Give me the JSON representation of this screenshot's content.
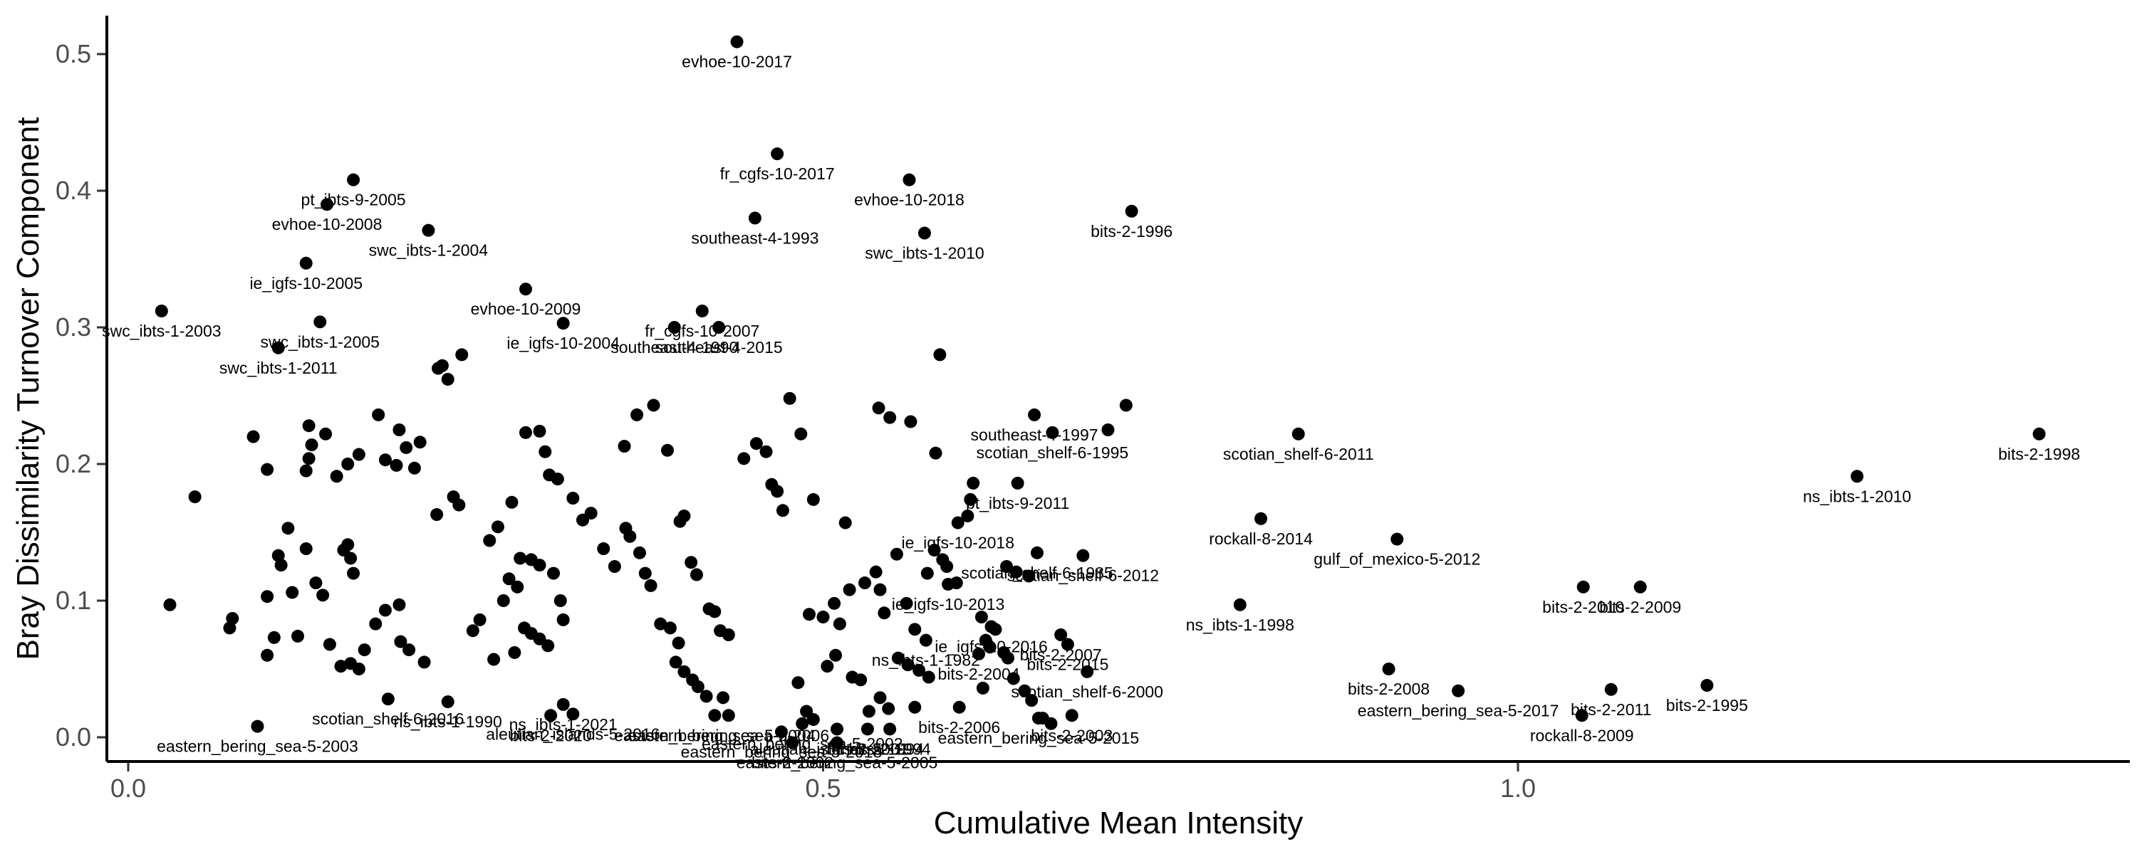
{
  "chart_data": {
    "type": "scatter",
    "title": "",
    "xlabel": "Cumulative Mean Intensity",
    "ylabel": "Bray Dissimilarity Turnover Component",
    "xlim": [
      -0.02,
      1.44
    ],
    "ylim": [
      -0.02,
      0.535
    ],
    "xticks": [
      0.0,
      0.5,
      1.0
    ],
    "yticks": [
      0.0,
      0.1,
      0.2,
      0.3,
      0.4,
      0.5
    ],
    "xtick_labels": [
      "0.0",
      "0.5",
      "1.0"
    ],
    "ytick_labels": [
      "0.0",
      "0.1",
      "0.2",
      "0.3",
      "0.4",
      "0.5"
    ],
    "grid": false,
    "legend": "none",
    "point_color": "#000000",
    "labeled_points": [
      {
        "x": 0.438,
        "y": 0.509,
        "label": "evhoe-10-2017"
      },
      {
        "x": 0.467,
        "y": 0.427,
        "label": "fr_cgfs-10-2017"
      },
      {
        "x": 0.562,
        "y": 0.408,
        "label": "evhoe-10-2018"
      },
      {
        "x": 0.451,
        "y": 0.38,
        "label": "southeast-4-1993"
      },
      {
        "x": 0.573,
        "y": 0.369,
        "label": "swc_ibts-1-2010"
      },
      {
        "x": 0.722,
        "y": 0.385,
        "label": "bits-2-1996"
      },
      {
        "x": 0.162,
        "y": 0.408,
        "label": "pt_ibts-9-2005"
      },
      {
        "x": 0.143,
        "y": 0.39,
        "label": "evhoe-10-2008"
      },
      {
        "x": 0.216,
        "y": 0.371,
        "label": "swc_ibts-1-2004"
      },
      {
        "x": 0.128,
        "y": 0.347,
        "label": "ie_igfs-10-2005"
      },
      {
        "x": 0.024,
        "y": 0.312,
        "label": "swc_ibts-1-2003"
      },
      {
        "x": 0.138,
        "y": 0.304,
        "label": "swc_ibts-1-2005"
      },
      {
        "x": 0.108,
        "y": 0.285,
        "label": "swc_ibts-1-2011"
      },
      {
        "x": 0.286,
        "y": 0.328,
        "label": "evhoe-10-2009"
      },
      {
        "x": 0.313,
        "y": 0.303,
        "label": "ie_igfs-10-2004"
      },
      {
        "x": 0.413,
        "y": 0.312,
        "label": "fr_cgfs-10-2007"
      },
      {
        "x": 0.393,
        "y": 0.3,
        "label": "southeast-4-1990"
      },
      {
        "x": 0.425,
        "y": 0.3,
        "label": "southeast-4-2015"
      },
      {
        "x": 0.665,
        "y": 0.223,
        "label": "scotian_shelf-6-1995"
      },
      {
        "x": 0.652,
        "y": 0.236,
        "label": "southeast-4-1997"
      },
      {
        "x": 0.842,
        "y": 0.222,
        "label": "scotian_shelf-6-2011"
      },
      {
        "x": 1.375,
        "y": 0.222,
        "label": "bits-2-1998"
      },
      {
        "x": 1.244,
        "y": 0.191,
        "label": "ns_ibts-1-2010"
      },
      {
        "x": 0.64,
        "y": 0.186,
        "label": "pt_ibts-9-2011"
      },
      {
        "x": 0.815,
        "y": 0.16,
        "label": "rockall-8-2014"
      },
      {
        "x": 0.913,
        "y": 0.145,
        "label": "gulf_of_mexico-5-2012"
      },
      {
        "x": 0.597,
        "y": 0.157,
        "label": "ie_igfs-10-2018"
      },
      {
        "x": 0.654,
        "y": 0.135,
        "label": "scotian_shelf-6-1985"
      },
      {
        "x": 0.687,
        "y": 0.133,
        "label": "scotian_shelf-6-2012"
      },
      {
        "x": 0.59,
        "y": 0.112,
        "label": "ie_igfs-10-2013"
      },
      {
        "x": 1.047,
        "y": 0.11,
        "label": "bits-2-2010"
      },
      {
        "x": 1.088,
        "y": 0.11,
        "label": "bits-2-2009"
      },
      {
        "x": 0.8,
        "y": 0.097,
        "label": "ns_ibts-1-1998"
      },
      {
        "x": 0.621,
        "y": 0.081,
        "label": "ie_igfs-10-2016"
      },
      {
        "x": 0.574,
        "y": 0.071,
        "label": "ns_ibts-1-1982"
      },
      {
        "x": 0.671,
        "y": 0.075,
        "label": "bits-2-2007"
      },
      {
        "x": 0.676,
        "y": 0.068,
        "label": "bits-2-2015"
      },
      {
        "x": 0.612,
        "y": 0.061,
        "label": "bits-2-2004"
      },
      {
        "x": 0.69,
        "y": 0.048,
        "label": "scotian_shelf-6-2000"
      },
      {
        "x": 0.598,
        "y": 0.022,
        "label": "bits-2-2006"
      },
      {
        "x": 0.907,
        "y": 0.05,
        "label": "bits-2-2008"
      },
      {
        "x": 0.957,
        "y": 0.034,
        "label": "eastern_bering_sea-5-2017"
      },
      {
        "x": 1.067,
        "y": 0.035,
        "label": "bits-2-2011"
      },
      {
        "x": 1.046,
        "y": 0.016,
        "label": "rockall-8-2009"
      },
      {
        "x": 1.136,
        "y": 0.038,
        "label": "bits-2-1995"
      },
      {
        "x": 0.679,
        "y": 0.016,
        "label": "bits-2-2003"
      },
      {
        "x": 0.655,
        "y": 0.014,
        "label": "eastern_bering_sea-5-2015"
      },
      {
        "x": 0.093,
        "y": 0.008,
        "label": "eastern_bering_sea-5-2003"
      },
      {
        "x": 0.187,
        "y": 0.028,
        "label": "scotian_shelf-6-2016"
      },
      {
        "x": 0.23,
        "y": 0.026,
        "label": "ns_ibts-1-1990"
      },
      {
        "x": 0.313,
        "y": 0.024,
        "label": "ns_ibts-1-2021"
      },
      {
        "x": 0.304,
        "y": 0.016,
        "label": "bits-2-2020"
      },
      {
        "x": 0.32,
        "y": 0.017,
        "label": "aleutian_islands-5-2016"
      },
      {
        "x": 0.422,
        "y": 0.016,
        "label": "eastern_bering_sea-5-2004"
      },
      {
        "x": 0.432,
        "y": 0.016,
        "label": "eastern_bering_sea-5-2006"
      },
      {
        "x": 0.47,
        "y": 0.004,
        "label": "eastern_bering_sea-5-2018"
      },
      {
        "x": 0.485,
        "y": 0.01,
        "label": "eastern_bering_sea-5-2002"
      },
      {
        "x": 0.51,
        "y": 0.006,
        "label": "aleutian_islands-5-1994"
      },
      {
        "x": 0.532,
        "y": 0.006,
        "label": "bits-2-2001"
      },
      {
        "x": 0.548,
        "y": 0.006,
        "label": "bits-2-1994"
      },
      {
        "x": 0.51,
        "y": -0.004,
        "label": "eastern_bering_sea-5-2005"
      },
      {
        "x": 0.478,
        "y": -0.004,
        "label": "bits-2-2002"
      }
    ],
    "unlabeled_points": [
      [
        0.048,
        0.176
      ],
      [
        0.09,
        0.22
      ],
      [
        0.1,
        0.196
      ],
      [
        0.13,
        0.228
      ],
      [
        0.142,
        0.222
      ],
      [
        0.132,
        0.214
      ],
      [
        0.13,
        0.204
      ],
      [
        0.128,
        0.195
      ],
      [
        0.15,
        0.191
      ],
      [
        0.158,
        0.2
      ],
      [
        0.166,
        0.207
      ],
      [
        0.18,
        0.236
      ],
      [
        0.185,
        0.203
      ],
      [
        0.193,
        0.199
      ],
      [
        0.195,
        0.225
      ],
      [
        0.2,
        0.212
      ],
      [
        0.21,
        0.216
      ],
      [
        0.206,
        0.197
      ],
      [
        0.223,
        0.27
      ],
      [
        0.226,
        0.272
      ],
      [
        0.23,
        0.262
      ],
      [
        0.24,
        0.28
      ],
      [
        0.234,
        0.176
      ],
      [
        0.238,
        0.17
      ],
      [
        0.222,
        0.163
      ],
      [
        0.075,
        0.087
      ],
      [
        0.073,
        0.08
      ],
      [
        0.1,
        0.103
      ],
      [
        0.118,
        0.106
      ],
      [
        0.115,
        0.153
      ],
      [
        0.11,
        0.126
      ],
      [
        0.108,
        0.133
      ],
      [
        0.128,
        0.138
      ],
      [
        0.135,
        0.113
      ],
      [
        0.14,
        0.104
      ],
      [
        0.155,
        0.137
      ],
      [
        0.158,
        0.141
      ],
      [
        0.16,
        0.131
      ],
      [
        0.162,
        0.12
      ],
      [
        0.03,
        0.097
      ],
      [
        0.1,
        0.06
      ],
      [
        0.105,
        0.073
      ],
      [
        0.122,
        0.074
      ],
      [
        0.145,
        0.068
      ],
      [
        0.153,
        0.052
      ],
      [
        0.16,
        0.054
      ],
      [
        0.166,
        0.05
      ],
      [
        0.17,
        0.064
      ],
      [
        0.178,
        0.083
      ],
      [
        0.185,
        0.093
      ],
      [
        0.195,
        0.097
      ],
      [
        0.196,
        0.07
      ],
      [
        0.202,
        0.064
      ],
      [
        0.213,
        0.055
      ],
      [
        0.248,
        0.078
      ],
      [
        0.253,
        0.086
      ],
      [
        0.26,
        0.144
      ],
      [
        0.266,
        0.154
      ],
      [
        0.276,
        0.172
      ],
      [
        0.286,
        0.223
      ],
      [
        0.296,
        0.224
      ],
      [
        0.3,
        0.209
      ],
      [
        0.303,
        0.192
      ],
      [
        0.309,
        0.189
      ],
      [
        0.32,
        0.175
      ],
      [
        0.327,
        0.159
      ],
      [
        0.333,
        0.164
      ],
      [
        0.274,
        0.116
      ],
      [
        0.282,
        0.131
      ],
      [
        0.29,
        0.13
      ],
      [
        0.296,
        0.126
      ],
      [
        0.306,
        0.12
      ],
      [
        0.311,
        0.1
      ],
      [
        0.313,
        0.086
      ],
      [
        0.27,
        0.1
      ],
      [
        0.28,
        0.11
      ],
      [
        0.285,
        0.08
      ],
      [
        0.29,
        0.076
      ],
      [
        0.296,
        0.072
      ],
      [
        0.302,
        0.067
      ],
      [
        0.278,
        0.062
      ],
      [
        0.263,
        0.057
      ],
      [
        0.342,
        0.138
      ],
      [
        0.35,
        0.125
      ],
      [
        0.358,
        0.153
      ],
      [
        0.361,
        0.147
      ],
      [
        0.368,
        0.135
      ],
      [
        0.372,
        0.12
      ],
      [
        0.376,
        0.111
      ],
      [
        0.383,
        0.083
      ],
      [
        0.39,
        0.08
      ],
      [
        0.396,
        0.069
      ],
      [
        0.357,
        0.213
      ],
      [
        0.366,
        0.236
      ],
      [
        0.378,
        0.243
      ],
      [
        0.388,
        0.21
      ],
      [
        0.397,
        0.158
      ],
      [
        0.4,
        0.162
      ],
      [
        0.405,
        0.128
      ],
      [
        0.409,
        0.119
      ],
      [
        0.418,
        0.094
      ],
      [
        0.422,
        0.092
      ],
      [
        0.426,
        0.078
      ],
      [
        0.432,
        0.075
      ],
      [
        0.394,
        0.055
      ],
      [
        0.4,
        0.048
      ],
      [
        0.406,
        0.042
      ],
      [
        0.41,
        0.037
      ],
      [
        0.428,
        0.029
      ],
      [
        0.416,
        0.03
      ],
      [
        0.443,
        0.204
      ],
      [
        0.452,
        0.215
      ],
      [
        0.459,
        0.209
      ],
      [
        0.463,
        0.185
      ],
      [
        0.467,
        0.18
      ],
      [
        0.471,
        0.166
      ],
      [
        0.476,
        0.248
      ],
      [
        0.484,
        0.222
      ],
      [
        0.493,
        0.174
      ],
      [
        0.49,
        0.09
      ],
      [
        0.5,
        0.088
      ],
      [
        0.508,
        0.098
      ],
      [
        0.512,
        0.083
      ],
      [
        0.519,
        0.108
      ],
      [
        0.521,
        0.044
      ],
      [
        0.516,
        0.157
      ],
      [
        0.54,
        0.241
      ],
      [
        0.548,
        0.234
      ],
      [
        0.563,
        0.231
      ],
      [
        0.553,
        0.134
      ],
      [
        0.56,
        0.098
      ],
      [
        0.566,
        0.079
      ],
      [
        0.53,
        0.113
      ],
      [
        0.538,
        0.121
      ],
      [
        0.541,
        0.108
      ],
      [
        0.544,
        0.091
      ],
      [
        0.509,
        0.06
      ],
      [
        0.503,
        0.052
      ],
      [
        0.482,
        0.04
      ],
      [
        0.488,
        0.019
      ],
      [
        0.493,
        0.013
      ],
      [
        0.547,
        0.021
      ],
      [
        0.566,
        0.022
      ],
      [
        0.581,
        0.208
      ],
      [
        0.584,
        0.28
      ],
      [
        0.586,
        0.13
      ],
      [
        0.58,
        0.137
      ],
      [
        0.575,
        0.12
      ],
      [
        0.589,
        0.125
      ],
      [
        0.596,
        0.113
      ],
      [
        0.604,
        0.162
      ],
      [
        0.606,
        0.174
      ],
      [
        0.608,
        0.186
      ],
      [
        0.614,
        0.088
      ],
      [
        0.617,
        0.071
      ],
      [
        0.62,
        0.066
      ],
      [
        0.624,
        0.079
      ],
      [
        0.63,
        0.062
      ],
      [
        0.633,
        0.058
      ],
      [
        0.637,
        0.043
      ],
      [
        0.645,
        0.034
      ],
      [
        0.65,
        0.027
      ],
      [
        0.658,
        0.014
      ],
      [
        0.664,
        0.01
      ],
      [
        0.527,
        0.042
      ],
      [
        0.533,
        0.019
      ],
      [
        0.541,
        0.029
      ],
      [
        0.554,
        0.058
      ],
      [
        0.561,
        0.053
      ],
      [
        0.569,
        0.049
      ],
      [
        0.576,
        0.044
      ],
      [
        0.615,
        0.036
      ],
      [
        0.632,
        0.125
      ],
      [
        0.639,
        0.121
      ],
      [
        0.648,
        0.118
      ],
      [
        0.705,
        0.225
      ],
      [
        0.718,
        0.243
      ]
    ]
  }
}
